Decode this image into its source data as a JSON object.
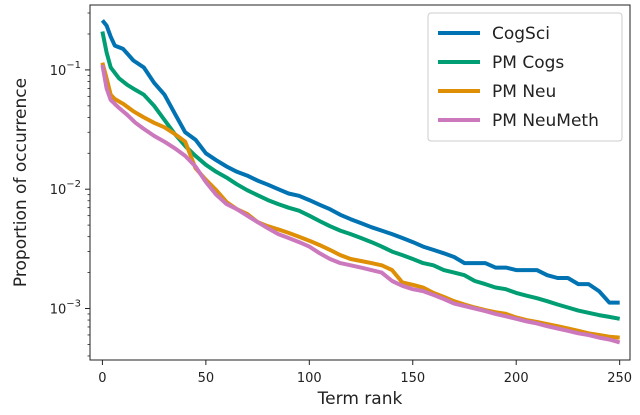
{
  "chart_data": {
    "type": "line",
    "title": "",
    "xlabel": "Term rank",
    "ylabel": "Proportion of occurrence",
    "xlim": [
      -6,
      255
    ],
    "ylim": [
      0.00037,
      0.35
    ],
    "yscale": "log",
    "grid": false,
    "legend": "top-right",
    "x_ticks": [
      0,
      50,
      100,
      150,
      200,
      250
    ],
    "y_ticks": [
      {
        "value": 0.1,
        "base": "10",
        "exp": "−1"
      },
      {
        "value": 0.01,
        "base": "10",
        "exp": "−2"
      },
      {
        "value": 0.001,
        "base": "10",
        "exp": "−3"
      }
    ],
    "series": [
      {
        "name": "CogSci",
        "color": "#0173b2",
        "points": [
          [
            0,
            0.26
          ],
          [
            2,
            0.235
          ],
          [
            4,
            0.19
          ],
          [
            6,
            0.16
          ],
          [
            10,
            0.15
          ],
          [
            15,
            0.12
          ],
          [
            20,
            0.105
          ],
          [
            25,
            0.078
          ],
          [
            30,
            0.062
          ],
          [
            35,
            0.043
          ],
          [
            40,
            0.03
          ],
          [
            45,
            0.026
          ],
          [
            50,
            0.02
          ],
          [
            55,
            0.0175
          ],
          [
            60,
            0.0155
          ],
          [
            65,
            0.014
          ],
          [
            70,
            0.013
          ],
          [
            75,
            0.0118
          ],
          [
            80,
            0.0109
          ],
          [
            85,
            0.01
          ],
          [
            90,
            0.0092
          ],
          [
            95,
            0.0088
          ],
          [
            100,
            0.0081
          ],
          [
            105,
            0.0074
          ],
          [
            110,
            0.0068
          ],
          [
            115,
            0.0061
          ],
          [
            120,
            0.0056
          ],
          [
            125,
            0.0052
          ],
          [
            130,
            0.0048
          ],
          [
            135,
            0.0045
          ],
          [
            140,
            0.0042
          ],
          [
            145,
            0.0039
          ],
          [
            150,
            0.0036
          ],
          [
            155,
            0.0033
          ],
          [
            160,
            0.0031
          ],
          [
            165,
            0.0029
          ],
          [
            170,
            0.0027
          ],
          [
            175,
            0.0024
          ],
          [
            180,
            0.0024
          ],
          [
            185,
            0.0024
          ],
          [
            190,
            0.0022
          ],
          [
            195,
            0.0022
          ],
          [
            200,
            0.0021
          ],
          [
            205,
            0.0021
          ],
          [
            210,
            0.0021
          ],
          [
            215,
            0.0019
          ],
          [
            220,
            0.0018
          ],
          [
            225,
            0.0018
          ],
          [
            230,
            0.0016
          ],
          [
            235,
            0.0016
          ],
          [
            240,
            0.0014
          ],
          [
            245,
            0.00112
          ],
          [
            250,
            0.00112
          ]
        ]
      },
      {
        "name": "PM Cogs",
        "color": "#029e73",
        "points": [
          [
            0,
            0.21
          ],
          [
            2,
            0.14
          ],
          [
            4,
            0.105
          ],
          [
            8,
            0.085
          ],
          [
            12,
            0.075
          ],
          [
            16,
            0.068
          ],
          [
            20,
            0.062
          ],
          [
            25,
            0.05
          ],
          [
            30,
            0.038
          ],
          [
            35,
            0.029
          ],
          [
            40,
            0.023
          ],
          [
            45,
            0.019
          ],
          [
            50,
            0.016
          ],
          [
            55,
            0.014
          ],
          [
            60,
            0.0125
          ],
          [
            65,
            0.011
          ],
          [
            70,
            0.0098
          ],
          [
            75,
            0.0089
          ],
          [
            80,
            0.0081
          ],
          [
            85,
            0.0075
          ],
          [
            90,
            0.007
          ],
          [
            95,
            0.0066
          ],
          [
            100,
            0.006
          ],
          [
            105,
            0.0054
          ],
          [
            110,
            0.0049
          ],
          [
            115,
            0.0045
          ],
          [
            120,
            0.0042
          ],
          [
            125,
            0.0039
          ],
          [
            130,
            0.0036
          ],
          [
            135,
            0.0033
          ],
          [
            140,
            0.003
          ],
          [
            145,
            0.0028
          ],
          [
            150,
            0.0026
          ],
          [
            155,
            0.0024
          ],
          [
            160,
            0.0023
          ],
          [
            165,
            0.0021
          ],
          [
            170,
            0.002
          ],
          [
            175,
            0.0019
          ],
          [
            180,
            0.0017
          ],
          [
            185,
            0.0016
          ],
          [
            190,
            0.0015
          ],
          [
            195,
            0.00145
          ],
          [
            200,
            0.00135
          ],
          [
            205,
            0.00128
          ],
          [
            210,
            0.00122
          ],
          [
            215,
            0.00115
          ],
          [
            220,
            0.00108
          ],
          [
            225,
            0.00102
          ],
          [
            230,
            0.00096
          ],
          [
            235,
            0.00092
          ],
          [
            240,
            0.00088
          ],
          [
            245,
            0.00085
          ],
          [
            250,
            0.00082
          ]
        ]
      },
      {
        "name": "PM Neu",
        "color": "#de8f05",
        "points": [
          [
            0,
            0.115
          ],
          [
            2,
            0.085
          ],
          [
            4,
            0.062
          ],
          [
            6,
            0.057
          ],
          [
            10,
            0.052
          ],
          [
            15,
            0.045
          ],
          [
            20,
            0.04
          ],
          [
            25,
            0.036
          ],
          [
            30,
            0.033
          ],
          [
            35,
            0.029
          ],
          [
            40,
            0.025
          ],
          [
            45,
            0.015
          ],
          [
            50,
            0.012
          ],
          [
            55,
            0.0098
          ],
          [
            60,
            0.0078
          ],
          [
            65,
            0.0068
          ],
          [
            70,
            0.0062
          ],
          [
            75,
            0.0053
          ],
          [
            80,
            0.0049
          ],
          [
            85,
            0.0046
          ],
          [
            90,
            0.0043
          ],
          [
            95,
            0.004
          ],
          [
            100,
            0.0037
          ],
          [
            105,
            0.0034
          ],
          [
            110,
            0.0031
          ],
          [
            115,
            0.0028
          ],
          [
            120,
            0.0026
          ],
          [
            125,
            0.0025
          ],
          [
            130,
            0.0024
          ],
          [
            135,
            0.0023
          ],
          [
            140,
            0.0021
          ],
          [
            145,
            0.00165
          ],
          [
            150,
            0.00158
          ],
          [
            155,
            0.0015
          ],
          [
            160,
            0.00135
          ],
          [
            165,
            0.00125
          ],
          [
            170,
            0.00115
          ],
          [
            175,
            0.00108
          ],
          [
            180,
            0.00102
          ],
          [
            185,
            0.00097
          ],
          [
            190,
            0.00093
          ],
          [
            195,
            0.0009
          ],
          [
            200,
            0.00084
          ],
          [
            205,
            0.0008
          ],
          [
            210,
            0.00077
          ],
          [
            215,
            0.00074
          ],
          [
            220,
            0.00071
          ],
          [
            225,
            0.00068
          ],
          [
            230,
            0.00065
          ],
          [
            235,
            0.00062
          ],
          [
            240,
            0.0006
          ],
          [
            245,
            0.00058
          ],
          [
            250,
            0.00057
          ]
        ]
      },
      {
        "name": "PM NeuMeth",
        "color": "#cc78bc",
        "points": [
          [
            0,
            0.11
          ],
          [
            2,
            0.07
          ],
          [
            4,
            0.056
          ],
          [
            8,
            0.048
          ],
          [
            12,
            0.042
          ],
          [
            16,
            0.036
          ],
          [
            20,
            0.032
          ],
          [
            25,
            0.028
          ],
          [
            30,
            0.025
          ],
          [
            35,
            0.022
          ],
          [
            40,
            0.019
          ],
          [
            45,
            0.0155
          ],
          [
            50,
            0.0115
          ],
          [
            55,
            0.009
          ],
          [
            60,
            0.0075
          ],
          [
            65,
            0.0068
          ],
          [
            70,
            0.006
          ],
          [
            75,
            0.0053
          ],
          [
            80,
            0.0047
          ],
          [
            85,
            0.0042
          ],
          [
            90,
            0.0039
          ],
          [
            95,
            0.0036
          ],
          [
            100,
            0.0033
          ],
          [
            105,
            0.0029
          ],
          [
            110,
            0.0026
          ],
          [
            115,
            0.0024
          ],
          [
            120,
            0.0023
          ],
          [
            125,
            0.0022
          ],
          [
            130,
            0.0021
          ],
          [
            135,
            0.002
          ],
          [
            140,
            0.0017
          ],
          [
            145,
            0.00155
          ],
          [
            150,
            0.00145
          ],
          [
            155,
            0.0014
          ],
          [
            160,
            0.0013
          ],
          [
            165,
            0.0012
          ],
          [
            170,
            0.0011
          ],
          [
            175,
            0.00105
          ],
          [
            180,
            0.001
          ],
          [
            185,
            0.00095
          ],
          [
            190,
            0.0009
          ],
          [
            195,
            0.00086
          ],
          [
            200,
            0.00082
          ],
          [
            205,
            0.00078
          ],
          [
            210,
            0.00075
          ],
          [
            215,
            0.00071
          ],
          [
            220,
            0.00068
          ],
          [
            225,
            0.00065
          ],
          [
            230,
            0.00062
          ],
          [
            235,
            0.0006
          ],
          [
            240,
            0.00057
          ],
          [
            245,
            0.00055
          ],
          [
            250,
            0.00052
          ]
        ]
      }
    ]
  }
}
